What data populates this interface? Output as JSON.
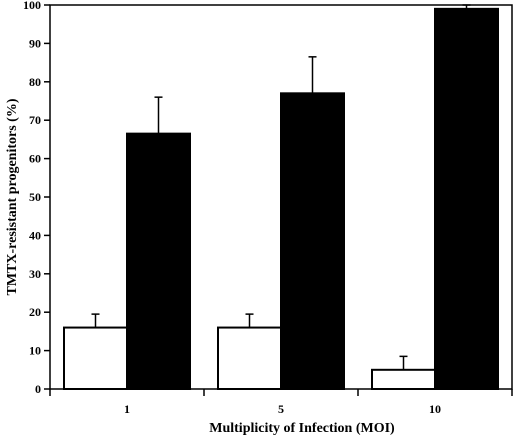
{
  "chart_data": {
    "type": "bar",
    "title": "",
    "xlabel": "Multiplicity of Infection (MOI)",
    "ylabel": "TMTX-resistant progenitors (%)",
    "categories": [
      "1",
      "5",
      "10"
    ],
    "ylim": [
      0,
      100
    ],
    "yticks": [
      0,
      10,
      20,
      30,
      40,
      50,
      60,
      70,
      80,
      90,
      100
    ],
    "grid": false,
    "legend": "none",
    "series": [
      {
        "color": "#ffffff",
        "values": [
          16,
          16,
          5
        ],
        "errors": [
          3.5,
          3.5,
          3.5
        ]
      },
      {
        "color": "#000000",
        "values": [
          66.5,
          77,
          99
        ],
        "errors": [
          9.5,
          9.5,
          1
        ]
      }
    ]
  }
}
